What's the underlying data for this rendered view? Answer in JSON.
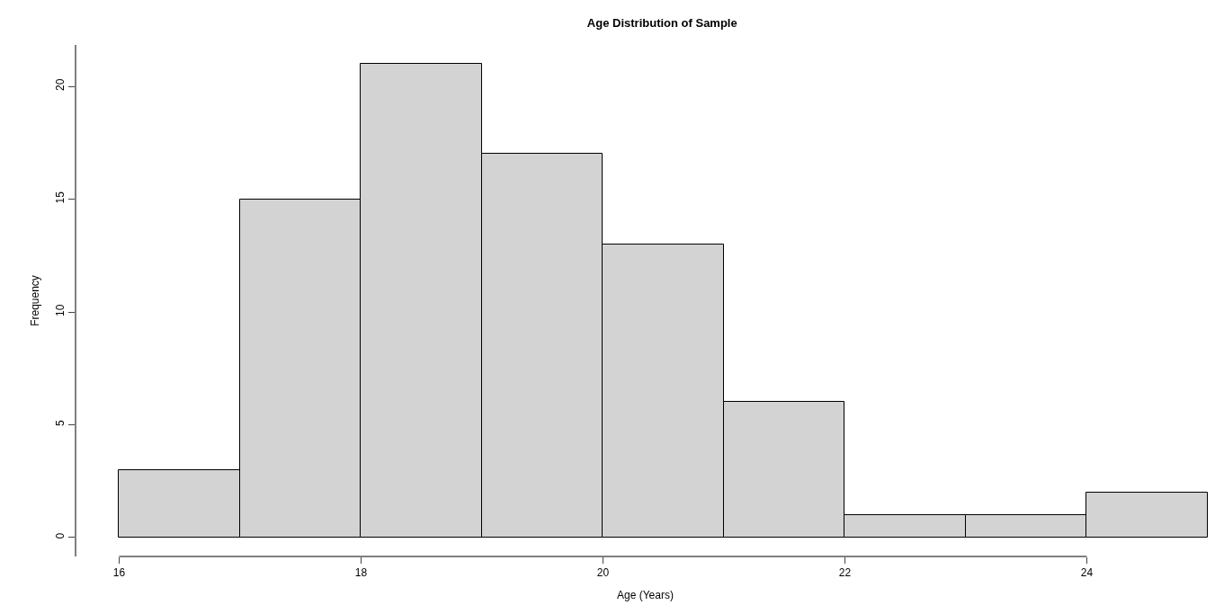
{
  "chart_data": {
    "type": "histogram",
    "title": "Age Distribution of Sample",
    "xlabel": "Age (Years)",
    "ylabel": "Frequency",
    "bins": [
      16,
      17,
      18,
      19,
      20,
      21,
      22,
      23,
      24,
      25
    ],
    "values": [
      3,
      15,
      21,
      17,
      13,
      6,
      1,
      1,
      2
    ],
    "color": "#d3d3d3",
    "xlim": [
      15.64,
      25.06
    ],
    "xticks": [
      16,
      18,
      20,
      22,
      24
    ],
    "ylim": [
      -0.84,
      21.84
    ],
    "yticks": [
      0,
      5,
      10,
      15,
      20
    ],
    "grid": false
  }
}
